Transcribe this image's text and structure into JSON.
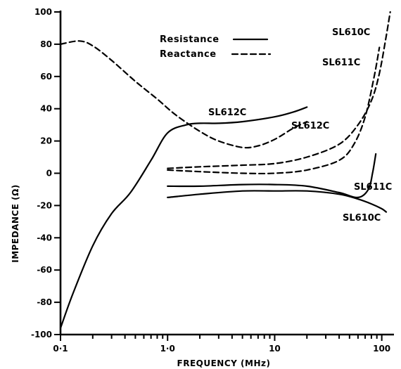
{
  "chart_data": {
    "type": "line",
    "xlabel": "FREQUENCY (MHz)",
    "ylabel": "IMPEDANCE (Ω)",
    "x_scale": "log",
    "xlim": [
      0.1,
      130
    ],
    "ylim": [
      -100,
      100
    ],
    "x_ticks": [
      0.1,
      1.0,
      10,
      100
    ],
    "x_tick_labels": [
      "0·1",
      "1·0",
      "10",
      "100"
    ],
    "y_ticks": [
      100,
      80,
      60,
      40,
      20,
      0,
      -20,
      -40,
      -60,
      -80,
      -100
    ],
    "y_tick_labels": [
      "100",
      "80",
      "60",
      "40",
      "20",
      "0",
      "-20",
      "-40",
      "-60",
      "-80",
      "-100"
    ],
    "grid": false,
    "legend": {
      "position": "top-center",
      "entries": [
        {
          "label": "Resistance",
          "style": "solid"
        },
        {
          "label": "Reactance",
          "style": "dashed"
        }
      ]
    },
    "series": [
      {
        "kind": "Resistance",
        "style": "solid",
        "label": "SL612C",
        "x": [
          0.1,
          0.13,
          0.2,
          0.3,
          0.45,
          0.7,
          1.0,
          1.5,
          2.0,
          3.0,
          5.0,
          10,
          15,
          20
        ],
        "y": [
          -96,
          -75,
          -45,
          -25,
          -12,
          8,
          25,
          30,
          31,
          31,
          32,
          35,
          38,
          41
        ]
      },
      {
        "kind": "Reactance",
        "style": "dashed",
        "label": "SL612C",
        "x": [
          0.1,
          0.15,
          0.2,
          0.3,
          0.5,
          0.8,
          1.2,
          2.0,
          3.0,
          5.0,
          7.0,
          10,
          15,
          20
        ],
        "y": [
          80,
          82,
          79,
          70,
          57,
          46,
          36,
          26,
          20,
          16,
          17,
          21,
          28,
          32
        ]
      },
      {
        "kind": "Reactance",
        "style": "dashed",
        "label": "SL610C",
        "x": [
          1.0,
          2.0,
          5.0,
          10,
          20,
          40,
          60,
          80,
          95,
          110,
          120
        ],
        "y": [
          3,
          4,
          5,
          6,
          10,
          18,
          30,
          45,
          62,
          85,
          100
        ]
      },
      {
        "kind": "Reactance",
        "style": "dashed",
        "label": "SL611C",
        "x": [
          1.0,
          2.0,
          5.0,
          10,
          20,
          40,
          55,
          70,
          85,
          95
        ],
        "y": [
          2,
          1,
          0,
          0,
          2,
          8,
          18,
          35,
          60,
          78
        ]
      },
      {
        "kind": "Resistance",
        "style": "solid",
        "label": "SL611C",
        "x": [
          1.0,
          2.0,
          5.0,
          10,
          20,
          40,
          60,
          75,
          82,
          88
        ],
        "y": [
          -8,
          -8,
          -7,
          -7,
          -8,
          -12,
          -15,
          -10,
          0,
          12
        ]
      },
      {
        "kind": "Resistance",
        "style": "solid",
        "label": "SL610C",
        "x": [
          1.0,
          2.0,
          5.0,
          10,
          20,
          40,
          60,
          80,
          100,
          110
        ],
        "y": [
          -15,
          -13,
          -11,
          -11,
          -11,
          -13,
          -16,
          -19,
          -22,
          -24
        ]
      }
    ],
    "annotations": [
      {
        "text": "SL612C"
      },
      {
        "text": "SL612C"
      },
      {
        "text": "SL610C"
      },
      {
        "text": "SL611C"
      },
      {
        "text": "SL611C"
      },
      {
        "text": "SL610C"
      }
    ]
  }
}
